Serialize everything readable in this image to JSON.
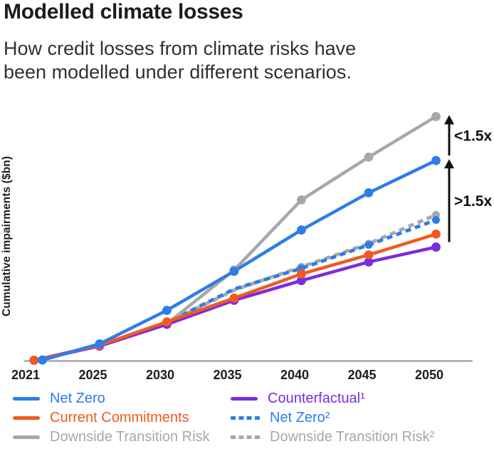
{
  "header": {
    "title": "Modelled climate losses",
    "subtitle_line1": "How credit losses from climate risks have",
    "subtitle_line2": "been modelled under different scenarios."
  },
  "colors": {
    "blue": "#2e7ceb",
    "orange": "#f1591f",
    "gray": "#a6a8ab",
    "purple": "#7c2be0",
    "axis": "#a6a8ab",
    "text": "#1c1c1e",
    "arrow": "#111111"
  },
  "chart_data": {
    "type": "line",
    "title": "Modelled climate losses",
    "subtitle": "How credit losses from climate risks have been modelled under different scenarios.",
    "xlabel": "",
    "ylabel": "Cumulative impairments ($bn)",
    "x_tick_labels": [
      "2021",
      "2025",
      "2030",
      "2035",
      "2040",
      "2045",
      "2050"
    ],
    "y_axis": {
      "numeric_ticks_shown": false,
      "value_units": "relative index estimated from pixel heights (Downside Transition Risk at 2050 = 100)",
      "ylim": [
        0,
        100
      ]
    },
    "grid": false,
    "legend_position": "bottom",
    "series": [
      {
        "name": "Downside Transition Risk²",
        "color": "#a6a8ab",
        "dashed": true,
        "dots_from_year": 2040,
        "points": [
          [
            2021.5,
            0.3
          ],
          [
            2025.5,
            6.3
          ],
          [
            2030.5,
            15.5
          ],
          [
            2035.5,
            29.0
          ],
          [
            2040.5,
            38.5
          ],
          [
            2045.5,
            48.0
          ],
          [
            2050.5,
            59.8
          ]
        ]
      },
      {
        "name": "Net Zero²",
        "color": "#2e7ceb",
        "dashed": true,
        "dots_from_year": 2040,
        "points": [
          [
            2021.5,
            0.3
          ],
          [
            2025.5,
            6.3
          ],
          [
            2030.5,
            15.7
          ],
          [
            2035.5,
            29.4
          ],
          [
            2040.5,
            37.9
          ],
          [
            2045.5,
            47.5
          ],
          [
            2050.5,
            57.7
          ]
        ]
      },
      {
        "name": "Downside Transition Risk",
        "color": "#a6a8ab",
        "dashed": false,
        "dots_from_year": 2021,
        "points": [
          [
            2022,
            0.4
          ],
          [
            2025.5,
            6.7
          ],
          [
            2030.5,
            15.2
          ],
          [
            2035.5,
            37.2
          ],
          [
            2040.5,
            65.9
          ],
          [
            2045.5,
            83.4
          ],
          [
            2050.5,
            100
          ]
        ]
      },
      {
        "name": "Counterfactual¹",
        "color": "#7c2be0",
        "dashed": false,
        "dots_from_year": 2021,
        "points": [
          [
            2021.5,
            0.3
          ],
          [
            2025.5,
            6.1
          ],
          [
            2030.5,
            15.0
          ],
          [
            2035.5,
            24.8
          ],
          [
            2040.5,
            32.9
          ],
          [
            2045.5,
            40.5
          ],
          [
            2050.5,
            46.6
          ]
        ]
      },
      {
        "name": "Current Commitments",
        "color": "#f1591f",
        "dashed": false,
        "dots_from_year": 2021,
        "points": [
          [
            2021.5,
            0.3
          ],
          [
            2025.5,
            6.4
          ],
          [
            2030.5,
            16.0
          ],
          [
            2035.5,
            25.7
          ],
          [
            2040.5,
            35.6
          ],
          [
            2045.5,
            43.4
          ],
          [
            2050.5,
            51.9
          ]
        ]
      },
      {
        "name": "Net Zero",
        "color": "#2e7ceb",
        "dashed": false,
        "dots_from_year": 2021,
        "points": [
          [
            2022,
            0.4
          ],
          [
            2025.5,
            7.0
          ],
          [
            2030.5,
            20.7
          ],
          [
            2035.5,
            36.7
          ],
          [
            2040.5,
            53.6
          ],
          [
            2045.5,
            68.8
          ],
          [
            2050.5,
            82.0
          ]
        ]
      }
    ],
    "annotations": [
      {
        "text": "<1.5x",
        "from_series": "Net Zero",
        "to_series": "Downside Transition Risk"
      },
      {
        "text": ">1.5x",
        "from_series": "Counterfactual¹",
        "to_series": "Net Zero"
      }
    ]
  },
  "legend": {
    "columns": [
      {
        "items": [
          {
            "label": "Net Zero",
            "color": "#2e7ceb",
            "dashed": false
          },
          {
            "label": "Current Commitments",
            "color": "#f1591f",
            "dashed": false
          },
          {
            "label": "Downside Transition Risk",
            "color": "#a6a8ab",
            "dashed": false
          }
        ]
      },
      {
        "items": [
          {
            "label": "Counterfactual¹",
            "color": "#7c2be0",
            "dashed": false
          },
          {
            "label": "Net Zero²",
            "color": "#2e7ceb",
            "dashed": true
          },
          {
            "label": "Downside Transition Risk²",
            "color": "#a6a8ab",
            "dashed": true
          }
        ]
      }
    ]
  }
}
